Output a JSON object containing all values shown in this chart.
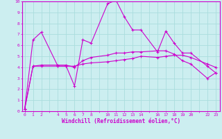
{
  "xlabel": "Windchill (Refroidissement éolien,°C)",
  "bg_color": "#cceef0",
  "grid_color": "#aadddd",
  "line_color": "#cc00cc",
  "x_ticks": [
    0,
    1,
    2,
    4,
    5,
    6,
    7,
    8,
    10,
    11,
    12,
    13,
    14,
    16,
    17,
    18,
    19,
    20,
    22,
    23
  ],
  "ylim": [
    0,
    10
  ],
  "xlim": [
    -0.3,
    23.5
  ],
  "series": [
    {
      "x": [
        0,
        1,
        2,
        4,
        5,
        6,
        7,
        8,
        10,
        11,
        12,
        13,
        14,
        16,
        17,
        18,
        19,
        20,
        22,
        23
      ],
      "y": [
        0.2,
        6.5,
        7.2,
        4.1,
        4.1,
        2.3,
        6.5,
        6.2,
        9.8,
        10.1,
        8.6,
        7.4,
        7.4,
        5.4,
        7.3,
        6.2,
        5.3,
        5.3,
        4.1,
        3.5
      ]
    },
    {
      "x": [
        0,
        1,
        2,
        4,
        5,
        6,
        7,
        8,
        10,
        11,
        12,
        13,
        14,
        16,
        17,
        18,
        19,
        20,
        22,
        23
      ],
      "y": [
        0.2,
        4.1,
        4.1,
        4.1,
        4.1,
        4.1,
        4.3,
        4.4,
        4.5,
        4.6,
        4.7,
        4.8,
        5.0,
        4.9,
        5.0,
        5.1,
        5.1,
        4.9,
        4.3,
        4.0
      ]
    },
    {
      "x": [
        0,
        1,
        2,
        4,
        5,
        6,
        7,
        8,
        10,
        11,
        12,
        13,
        14,
        16,
        17,
        18,
        19,
        20,
        22,
        23
      ],
      "y": [
        0.2,
        4.1,
        4.2,
        4.2,
        4.2,
        4.0,
        4.6,
        4.9,
        5.1,
        5.3,
        5.3,
        5.4,
        5.4,
        5.5,
        5.5,
        5.2,
        4.6,
        4.3,
        3.0,
        3.5
      ]
    }
  ]
}
